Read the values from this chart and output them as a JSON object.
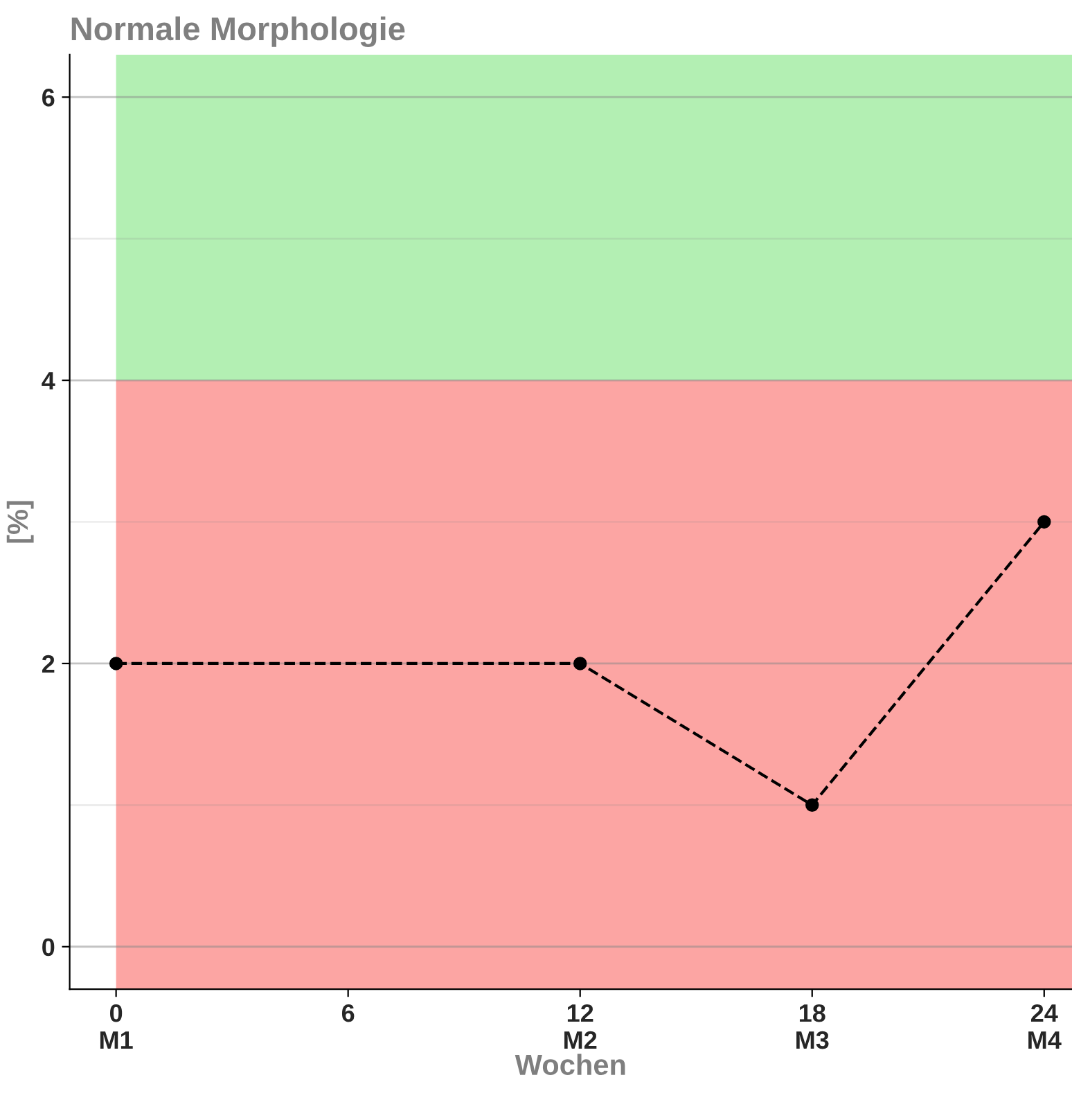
{
  "chart_data": {
    "type": "line",
    "title": "Normale Morphologie",
    "xlabel": "Wochen",
    "ylabel": "[%]",
    "categories": [
      "0\nM1",
      "6",
      "12\nM2",
      "18\nM3",
      "24\nM4"
    ],
    "series": [
      {
        "color": "#000000",
        "values": [
          2,
          null,
          2,
          1,
          3
        ]
      }
    ],
    "ylim": [
      -0.3,
      6.3
    ],
    "yticks": [
      0,
      2,
      4,
      6
    ],
    "bands": [
      {
        "axis": "y",
        "from": -0.3,
        "to": 4,
        "color": "#fca5a3"
      },
      {
        "axis": "y",
        "from": 4,
        "to": 6.3,
        "color": "#b3efb3"
      }
    ],
    "grid": "y",
    "legend": false,
    "marker": "circle",
    "line_style": "dashed"
  }
}
